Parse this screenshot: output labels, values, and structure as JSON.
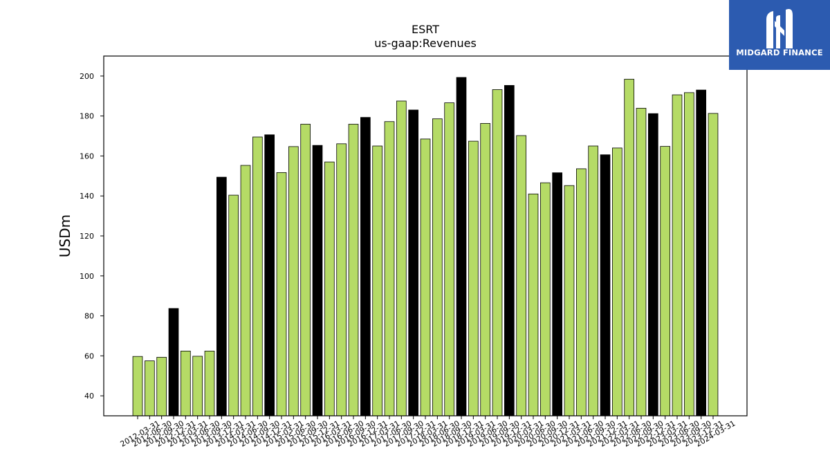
{
  "brand": {
    "name": "MIDGARD FINANCE",
    "bg_color": "#2c5bb0"
  },
  "chart_data": {
    "type": "bar",
    "title": "ESRT",
    "subtitle": "us-gaap:Revenues",
    "xlabel": "",
    "ylabel": "USDm",
    "ylim": [
      30,
      210
    ],
    "yticks": [
      40,
      60,
      80,
      100,
      120,
      140,
      160,
      180,
      200
    ],
    "grid": false,
    "colors": {
      "default": "#b5db66",
      "highlight": "#000000",
      "edge": "#000000"
    },
    "categories": [
      "2012-03-31",
      "2012-06-30",
      "2012-09-30",
      "2012-12-31",
      "2013-03-31",
      "2013-06-30",
      "2013-09-30",
      "2013-12-31",
      "2014-03-31",
      "2014-06-30",
      "2014-09-30",
      "2014-12-31",
      "2015-03-31",
      "2015-06-30",
      "2015-09-30",
      "2015-12-31",
      "2016-03-31",
      "2016-06-30",
      "2016-09-30",
      "2016-12-31",
      "2017-03-31",
      "2017-06-30",
      "2017-09-30",
      "2017-12-31",
      "2018-03-31",
      "2018-06-30",
      "2018-09-30",
      "2018-12-31",
      "2019-03-31",
      "2019-06-30",
      "2019-09-30",
      "2019-12-31",
      "2020-03-31",
      "2020-06-30",
      "2020-09-30",
      "2020-12-31",
      "2021-03-31",
      "2021-06-30",
      "2021-09-30",
      "2021-12-31",
      "2022-03-31",
      "2022-06-30",
      "2022-09-30",
      "2022-12-31",
      "2023-03-31",
      "2023-06-30",
      "2023-09-30",
      "2023-12-31",
      "2024-03-31"
    ],
    "values": [
      59.7,
      57.5,
      59.3,
      83.7,
      62.4,
      59.8,
      62.4,
      149.4,
      140.4,
      155.3,
      169.5,
      170.6,
      151.7,
      164.7,
      175.9,
      165.3,
      157.0,
      166.1,
      175.9,
      179.3,
      165.0,
      177.2,
      187.5,
      183.0,
      168.5,
      178.6,
      186.6,
      199.3,
      167.4,
      176.3,
      193.2,
      195.3,
      170.2,
      141.0,
      146.6,
      151.6,
      145.2,
      153.6,
      165.0,
      160.6,
      164.0,
      198.4,
      183.9,
      181.2,
      164.8,
      190.6,
      191.7,
      193.0,
      181.3
    ],
    "highlight": [
      false,
      false,
      false,
      true,
      false,
      false,
      false,
      true,
      false,
      false,
      false,
      true,
      false,
      false,
      false,
      true,
      false,
      false,
      false,
      true,
      false,
      false,
      false,
      true,
      false,
      false,
      false,
      true,
      false,
      false,
      false,
      true,
      false,
      false,
      false,
      true,
      false,
      false,
      false,
      true,
      false,
      false,
      false,
      true,
      false,
      false,
      false,
      true,
      false
    ]
  }
}
